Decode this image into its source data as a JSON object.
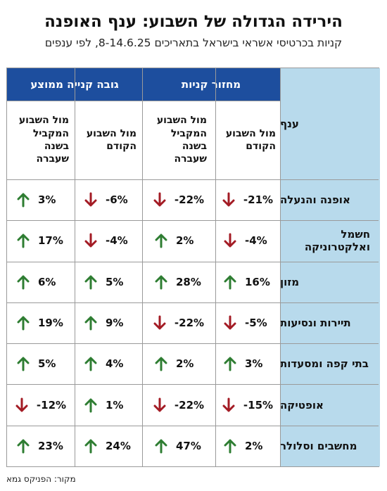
{
  "title": "הירידה הגדולה של השבוע: ענף האופנה",
  "subtitle": "קניות בכרטיסי אשראי בישראל בתאריכים 8-14.6.25, לפי ענפים",
  "source": "מקור: הפניקס גמא",
  "colors": {
    "header_blue": "#1d4e9e",
    "category_bg": "#b8daec",
    "arrow_up": "#2e7d32",
    "arrow_down": "#a31b24"
  },
  "chart_data": {
    "type": "table",
    "title": "הירידה הגדולה של השבוע: ענף האופנה",
    "subtitle": "קניות בכרטיסי אשראי בישראל בתאריכים 8-14.6.25, לפי ענפים",
    "corner_label": "ענף",
    "groups": [
      {
        "name": "מחזור קניות",
        "columns": [
          "מול השבוע הקודם",
          "מול השבוע המקביל בשנה שעברה"
        ]
      },
      {
        "name": "גובה קנייה ממוצע",
        "columns": [
          "מול השבוע הקודם",
          "מול השבוע המקביל בשנה שעברה"
        ]
      }
    ],
    "rows": [
      {
        "category": "אופנה והנעלה",
        "values": [
          -21,
          -22,
          -6,
          3
        ],
        "labels": [
          "-21%",
          "-22%",
          "-6%",
          "3%"
        ]
      },
      {
        "category": "חשמל ואלקטרוניקה",
        "values": [
          -4,
          2,
          -4,
          17
        ],
        "labels": [
          "-4%",
          "2%",
          "-4%",
          "17%"
        ]
      },
      {
        "category": "מזון",
        "values": [
          16,
          28,
          5,
          6
        ],
        "labels": [
          "16%",
          "28%",
          "5%",
          "6%"
        ]
      },
      {
        "category": "תיירות ונסיעות",
        "values": [
          -5,
          -22,
          9,
          19
        ],
        "labels": [
          "-5%",
          "-22%",
          "9%",
          "19%"
        ]
      },
      {
        "category": "בתי קפה ומסעדות",
        "values": [
          3,
          2,
          4,
          5
        ],
        "labels": [
          "3%",
          "2%",
          "4%",
          "5%"
        ]
      },
      {
        "category": "אופטיקה",
        "values": [
          -15,
          -22,
          1,
          -12
        ],
        "labels": [
          "-15%",
          "-22%",
          "1%",
          "-12%"
        ]
      },
      {
        "category": "מחשבים וסלולר",
        "values": [
          2,
          47,
          24,
          23
        ],
        "labels": [
          "2%",
          "47%",
          "24%",
          "23%"
        ]
      }
    ]
  }
}
